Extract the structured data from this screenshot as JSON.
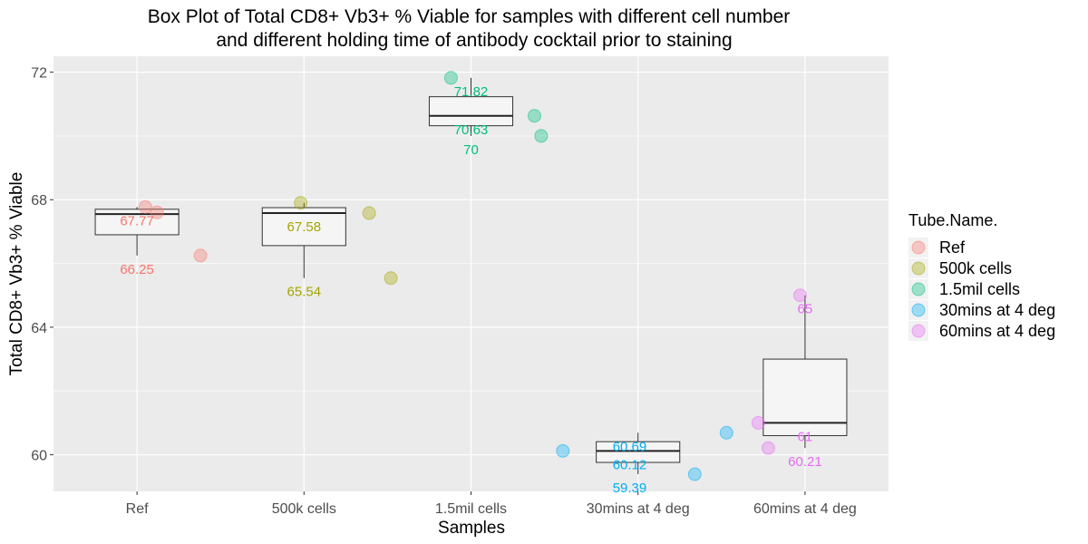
{
  "chart_data": {
    "type": "box",
    "title": [
      "Box Plot of Total CD8+ Vb3+ % Viable for samples with different cell number",
      "and different holding time of antibody cocktail prior to staining"
    ],
    "xlabel": "Samples",
    "ylabel": "Total CD8+ Vb3+ % Viable",
    "ylim": [
      58.85,
      72.5
    ],
    "yticks": [
      60,
      64,
      68,
      72
    ],
    "grid": true,
    "legend_title": "Tube.Name.",
    "legend_position": "right",
    "categories": [
      "Ref",
      "500k cells",
      "1.5mil cells",
      "30mins at 4 deg",
      "60mins at 4 deg"
    ],
    "colors": [
      "#F8766D",
      "#A3A500",
      "#00BF7D",
      "#00B0F6",
      "#E76BF3"
    ],
    "boxes": [
      {
        "category": "Ref",
        "min": 66.25,
        "q1": 66.9,
        "median": 67.55,
        "q3": 67.7,
        "max": 67.77
      },
      {
        "category": "500k cells",
        "min": 65.54,
        "q1": 66.56,
        "median": 67.58,
        "q3": 67.75,
        "max": 67.9
      },
      {
        "category": "1.5mil cells",
        "min": 70.0,
        "q1": 70.32,
        "median": 70.63,
        "q3": 71.23,
        "max": 71.82
      },
      {
        "category": "30mins at 4 deg",
        "min": 59.39,
        "q1": 59.76,
        "median": 60.12,
        "q3": 60.41,
        "max": 60.69
      },
      {
        "category": "60mins at 4 deg",
        "min": 60.21,
        "q1": 60.6,
        "median": 61.0,
        "q3": 63.0,
        "max": 65.0
      }
    ],
    "points": [
      {
        "category": "Ref",
        "x_offset": 0.05,
        "y": 67.77
      },
      {
        "category": "Ref",
        "x_offset": 0.12,
        "y": 67.6
      },
      {
        "category": "Ref",
        "x_offset": 0.38,
        "y": 66.25
      },
      {
        "category": "500k cells",
        "x_offset": -0.02,
        "y": 67.9
      },
      {
        "category": "500k cells",
        "x_offset": 0.39,
        "y": 67.58
      },
      {
        "category": "500k cells",
        "x_offset": 0.52,
        "y": 65.54
      },
      {
        "category": "1.5mil cells",
        "x_offset": -0.12,
        "y": 71.82
      },
      {
        "category": "1.5mil cells",
        "x_offset": 0.38,
        "y": 70.63
      },
      {
        "category": "1.5mil cells",
        "x_offset": 0.42,
        "y": 70.0
      },
      {
        "category": "30mins at 4 deg",
        "x_offset": -0.45,
        "y": 60.12
      },
      {
        "category": "30mins at 4 deg",
        "x_offset": 0.53,
        "y": 60.69
      },
      {
        "category": "30mins at 4 deg",
        "x_offset": 0.34,
        "y": 59.39
      },
      {
        "category": "60mins at 4 deg",
        "x_offset": -0.03,
        "y": 65.0
      },
      {
        "category": "60mins at 4 deg",
        "x_offset": -0.28,
        "y": 61.0
      },
      {
        "category": "60mins at 4 deg",
        "x_offset": -0.22,
        "y": 60.21
      }
    ],
    "data_labels": [
      {
        "category": "Ref",
        "x_offset": 0.0,
        "y": 67.77,
        "text": "67.77"
      },
      {
        "category": "Ref",
        "x_offset": 0.0,
        "y": 66.25,
        "text": "66.25"
      },
      {
        "category": "500k cells",
        "x_offset": 0.0,
        "y": 67.58,
        "text": "67.58"
      },
      {
        "category": "500k cells",
        "x_offset": 0.0,
        "y": 65.54,
        "text": "65.54"
      },
      {
        "category": "1.5mil cells",
        "x_offset": 0.0,
        "y": 71.82,
        "text": "71.82"
      },
      {
        "category": "1.5mil cells",
        "x_offset": 0.0,
        "y": 70.63,
        "text": "70.63"
      },
      {
        "category": "1.5mil cells",
        "x_offset": 0.0,
        "y": 70.0,
        "text": "70"
      },
      {
        "category": "30mins at 4 deg",
        "x_offset": -0.05,
        "y": 60.69,
        "text": "60.69"
      },
      {
        "category": "30mins at 4 deg",
        "x_offset": -0.05,
        "y": 60.12,
        "text": "60.12"
      },
      {
        "category": "30mins at 4 deg",
        "x_offset": -0.05,
        "y": 59.39,
        "text": "59.39"
      },
      {
        "category": "60mins at 4 deg",
        "x_offset": 0.0,
        "y": 65.0,
        "text": "65"
      },
      {
        "category": "60mins at 4 deg",
        "x_offset": 0.0,
        "y": 61.0,
        "text": "61"
      },
      {
        "category": "60mins at 4 deg",
        "x_offset": 0.0,
        "y": 60.21,
        "text": "60.21"
      }
    ]
  }
}
